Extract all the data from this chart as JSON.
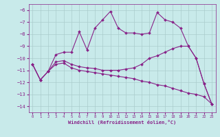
{
  "xlabel": "Windchill (Refroidissement éolien,°C)",
  "bg_color": "#c8eaea",
  "grid_color": "#aacccc",
  "line_color": "#882288",
  "xlim": [
    -0.5,
    23.5
  ],
  "ylim": [
    -14.5,
    -5.5
  ],
  "yticks": [
    -14,
    -13,
    -12,
    -11,
    -10,
    -9,
    -8,
    -7,
    -6
  ],
  "xticks": [
    0,
    1,
    2,
    3,
    4,
    5,
    6,
    7,
    8,
    9,
    10,
    11,
    12,
    13,
    14,
    15,
    16,
    17,
    18,
    19,
    20,
    21,
    22,
    23
  ],
  "line1_x": [
    0,
    1,
    2,
    3,
    4,
    5,
    6,
    7,
    8,
    9,
    10,
    11,
    12,
    13,
    14,
    15,
    16,
    17,
    18,
    19,
    20,
    21,
    22,
    23
  ],
  "line1_y": [
    -10.5,
    -11.8,
    -11.1,
    -9.7,
    -9.5,
    -9.5,
    -7.8,
    -9.3,
    -7.5,
    -6.8,
    -6.1,
    -7.5,
    -7.9,
    -7.9,
    -8.0,
    -7.9,
    -6.2,
    -6.8,
    -7.0,
    -7.5,
    -9.0,
    -10.0,
    -12.1,
    -13.8
  ],
  "line2_x": [
    0,
    1,
    2,
    3,
    4,
    5,
    6,
    7,
    8,
    9,
    10,
    11,
    12,
    13,
    14,
    15,
    16,
    17,
    18,
    19,
    20,
    21,
    22,
    23
  ],
  "line2_y": [
    -10.5,
    -11.8,
    -11.1,
    -10.3,
    -10.2,
    -10.5,
    -10.7,
    -10.8,
    -10.85,
    -11.0,
    -11.0,
    -11.0,
    -10.9,
    -10.8,
    -10.5,
    -10.0,
    -9.8,
    -9.5,
    -9.2,
    -9.0,
    -9.0,
    -10.0,
    -12.1,
    -13.8
  ],
  "line3_x": [
    0,
    1,
    2,
    3,
    4,
    5,
    6,
    7,
    8,
    9,
    10,
    11,
    12,
    13,
    14,
    15,
    16,
    17,
    18,
    19,
    20,
    21,
    22,
    23
  ],
  "line3_y": [
    -10.5,
    -11.8,
    -11.1,
    -10.5,
    -10.4,
    -10.8,
    -11.0,
    -11.1,
    -11.2,
    -11.3,
    -11.4,
    -11.5,
    -11.6,
    -11.7,
    -11.9,
    -12.0,
    -12.2,
    -12.3,
    -12.5,
    -12.7,
    -12.9,
    -13.0,
    -13.2,
    -13.8
  ]
}
